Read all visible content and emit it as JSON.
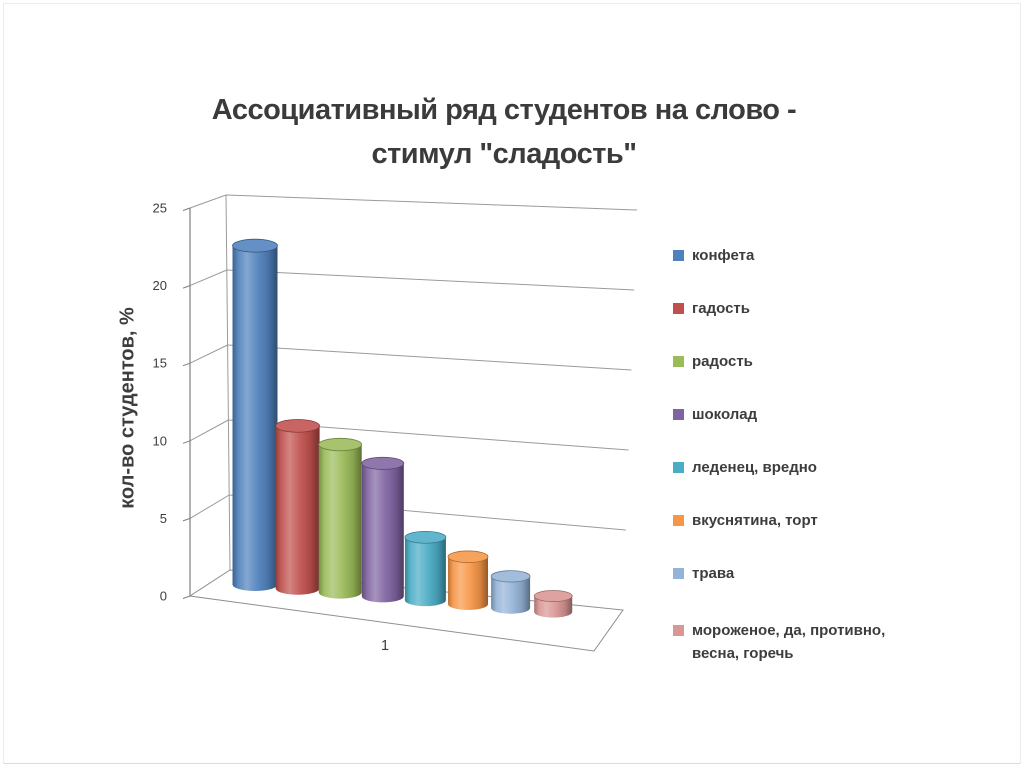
{
  "page": {
    "background": "#ffffff",
    "border_color": "#ececec"
  },
  "chart_data": {
    "type": "bar",
    "variant": "3d-cylinder",
    "title": "Ассоциативный ряд студентов на слово - стимул \"сладость\"",
    "title_lines": [
      "Ассоциативный ряд студентов на слово -",
      "стимул \"сладость\""
    ],
    "ylabel": "кол-во студентов, %",
    "xlabel": "",
    "categories": [
      "1"
    ],
    "yticks": [
      0,
      5,
      10,
      15,
      20,
      25
    ],
    "ylim": [
      0,
      25
    ],
    "grid": true,
    "legend_position": "right",
    "series": [
      {
        "name": "конфета",
        "value": 22,
        "color": "#4F81BD"
      },
      {
        "name": "гадость",
        "value": 10.5,
        "color": "#C0504D"
      },
      {
        "name": "радость",
        "value": 9.5,
        "color": "#9BBB59"
      },
      {
        "name": "шоколад",
        "value": 8.5,
        "color": "#8064A2"
      },
      {
        "name": "леденец, вредно",
        "value": 4,
        "color": "#4BACC6"
      },
      {
        "name": "вкуснятина, торт",
        "value": 3,
        "color": "#F79646"
      },
      {
        "name": "трава",
        "value": 2,
        "color": "#95B3D7"
      },
      {
        "name": "мороженое, да, противно, весна, горечь",
        "value": 1,
        "color": "#D99694"
      }
    ],
    "colors": {
      "grid_line": "#9a9a9a",
      "axis_line": "#7f7f7f",
      "text": "#3d3d3d"
    }
  }
}
